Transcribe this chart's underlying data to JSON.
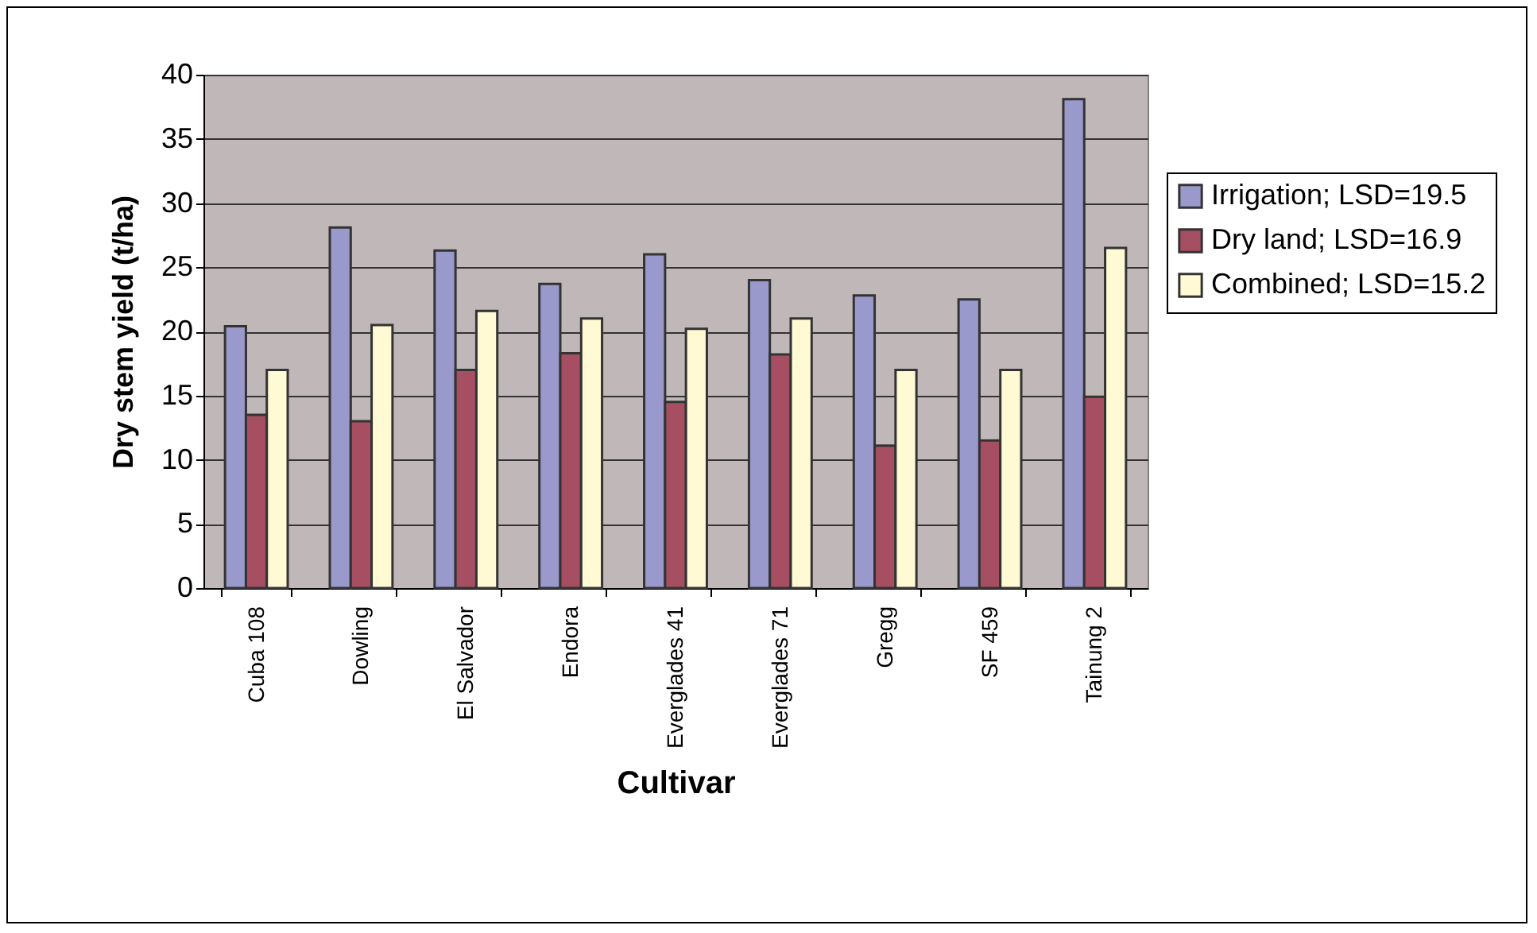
{
  "chart_data": {
    "type": "bar",
    "xlabel": "Cultivar",
    "ylabel": "Dry stem yield (t/ha)",
    "categories": [
      "Cuba 108",
      "Dowling",
      "El Salvador",
      "Endora",
      "Everglades 41",
      "Everglades 71",
      "Gregg",
      "SF 459",
      "Tainung 2"
    ],
    "series": [
      {
        "name": "Irrigation; LSD=19.5",
        "color": "#9999cc",
        "values": [
          20.4,
          28.1,
          26.3,
          23.7,
          26.0,
          24.0,
          22.8,
          22.5,
          38.1
        ]
      },
      {
        "name": "Dry land; LSD=16.9",
        "color": "#a64f62",
        "values": [
          13.5,
          13.0,
          17.0,
          18.3,
          14.5,
          18.2,
          11.1,
          11.5,
          14.9
        ]
      },
      {
        "name": "Combined; LSD=15.2",
        "color": "#fff9d4",
        "values": [
          17.0,
          20.5,
          21.6,
          21.0,
          20.2,
          21.0,
          17.0,
          17.0,
          26.5
        ]
      }
    ],
    "ylim": [
      0,
      40
    ],
    "yticks": [
      0,
      5,
      10,
      15,
      20,
      25,
      30,
      35,
      40
    ],
    "grid": "y",
    "legend": "right"
  }
}
